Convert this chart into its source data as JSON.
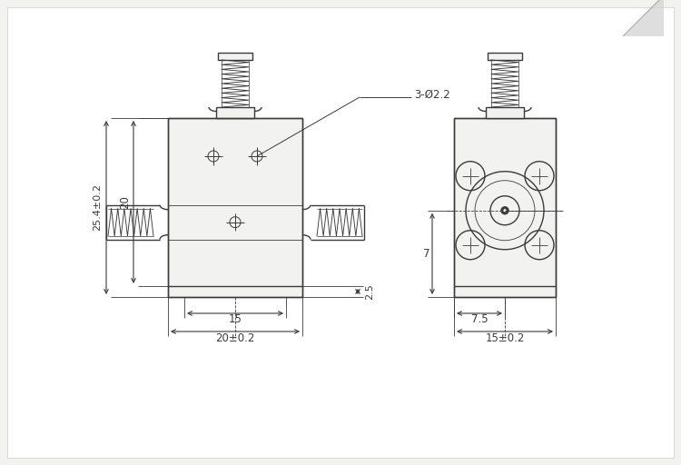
{
  "bg_color": "#f2f2f0",
  "line_color": "#3a3a3a",
  "dim_color": "#3a3a3a",
  "line_width": 1.0,
  "thin_lw": 0.6,
  "fig_width": 7.5,
  "fig_height": 5.12,
  "labels": {
    "dim_20": "20±0.2",
    "dim_15": "15",
    "dim_25": "2.5",
    "dim_254": "25.4±0.2",
    "dim_20v": "20",
    "dim_15s": "15±0.2",
    "dim_75": "7.5",
    "dim_7": "7",
    "hole_label": "3-Ø2.2"
  }
}
